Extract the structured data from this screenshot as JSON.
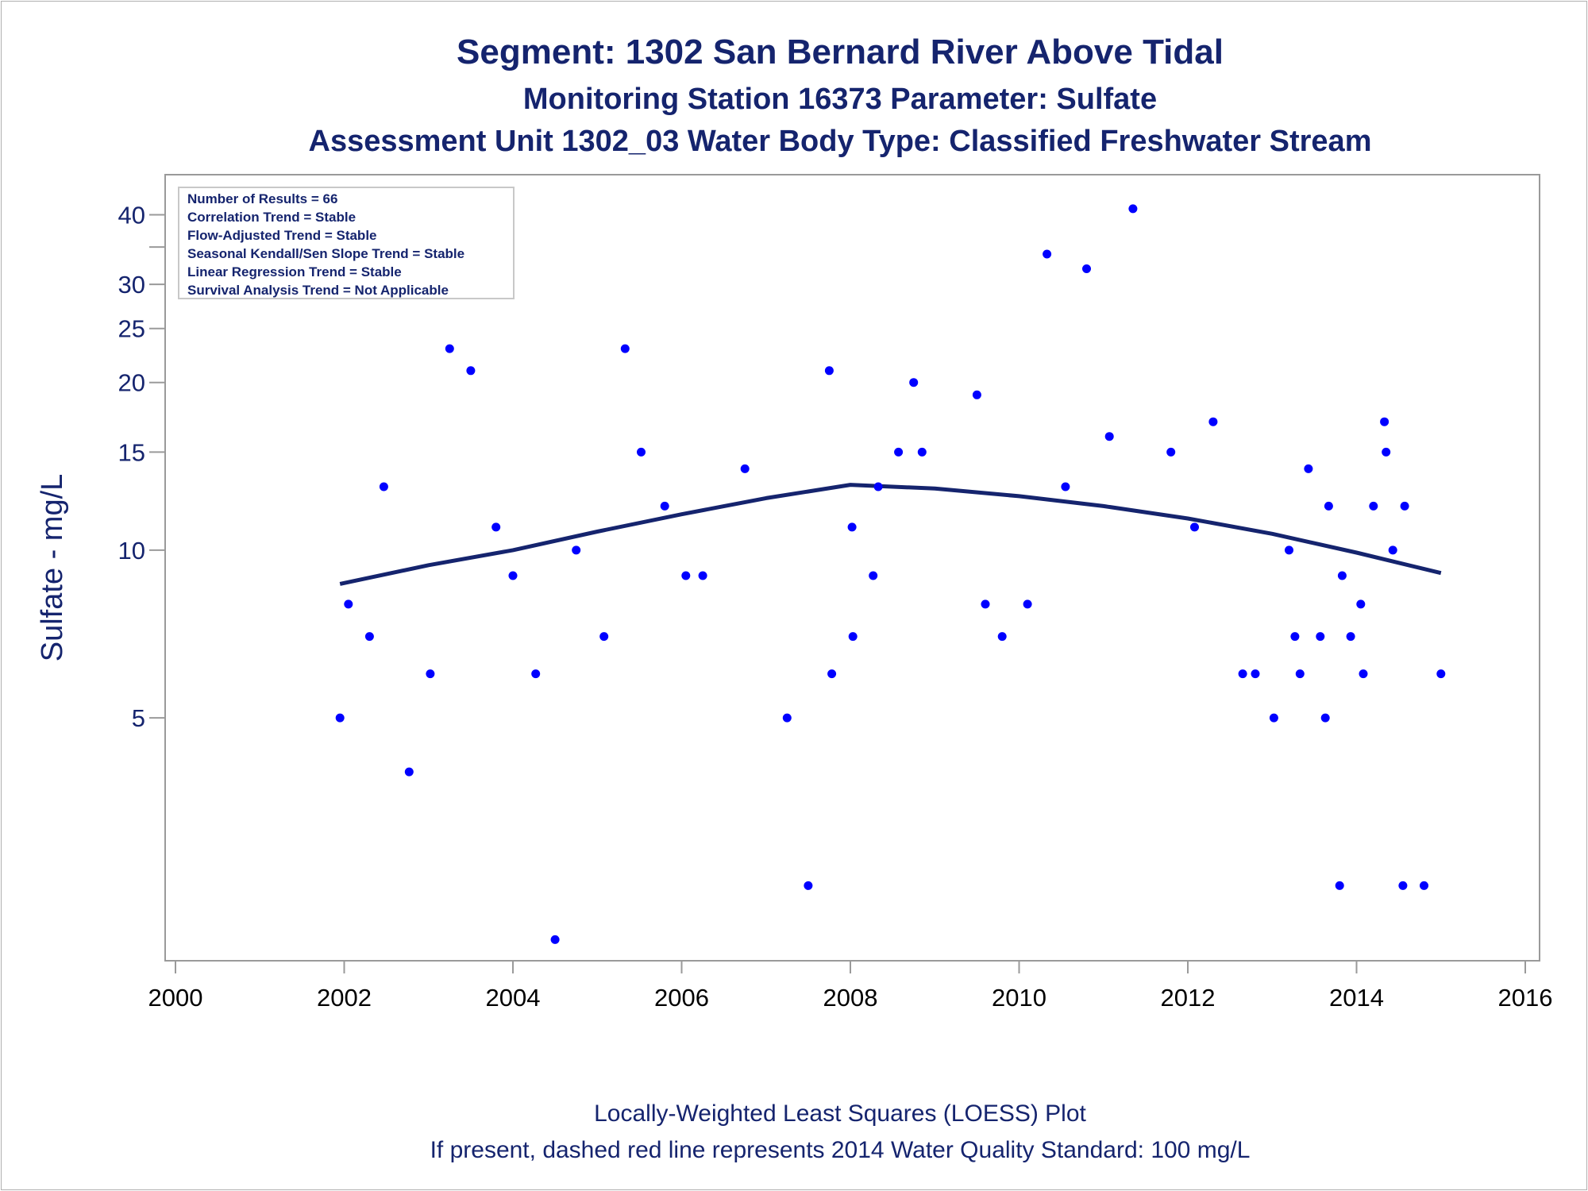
{
  "titles": {
    "line1": "Segment: 1302  San Bernard River Above Tidal",
    "line2": "Monitoring Station 16373 Parameter: Sulfate",
    "line3": "Assessment Unit 1302_03   Water Body Type: Classified Freshwater Stream"
  },
  "legend": {
    "lines": [
      "Number of Results = 66",
      "Correlation Trend = Stable",
      "Flow-Adjusted Trend = Stable",
      "Seasonal Kendall/Sen Slope Trend = Stable",
      "Linear Regression Trend = Stable",
      "Survival Analysis Trend = Not Applicable"
    ]
  },
  "footnotes": {
    "line1": "Locally-Weighted Least Squares (LOESS) Plot",
    "line2": "If present, dashed red line represents 2014 Water Quality Standard: 100   mg/L"
  },
  "colors": {
    "text": "#15246e",
    "points": "#0000ff",
    "loess": "#15246e",
    "axis": "#9a9a9a"
  },
  "chart_data": {
    "type": "scatter",
    "title": "Segment: 1302  San Bernard River Above Tidal",
    "ylabel": "Sulfate - mg/L",
    "xlabel": "",
    "y_scale": "log",
    "xlim": [
      2000,
      2016
    ],
    "ylim": [
      1.9,
      42.5
    ],
    "x_ticks": [
      "2000",
      "2002",
      "2004",
      "2006",
      "2008",
      "2010",
      "2012",
      "2014",
      "2016"
    ],
    "y_ticks": [
      {
        "value": 5,
        "label": "5"
      },
      {
        "value": 10,
        "label": "10"
      },
      {
        "value": 15,
        "label": "15"
      },
      {
        "value": 20,
        "label": "20"
      },
      {
        "value": 25,
        "label": "25"
      },
      {
        "value": 30,
        "label": "30"
      },
      {
        "value": 35,
        "label": ""
      },
      {
        "value": 40,
        "label": "40"
      }
    ],
    "points": [
      {
        "x": 2001.95,
        "y": 5
      },
      {
        "x": 2002.05,
        "y": 8
      },
      {
        "x": 2002.3,
        "y": 7
      },
      {
        "x": 2002.47,
        "y": 13
      },
      {
        "x": 2002.77,
        "y": 4
      },
      {
        "x": 2003.02,
        "y": 6
      },
      {
        "x": 2003.25,
        "y": 23
      },
      {
        "x": 2003.5,
        "y": 21
      },
      {
        "x": 2003.8,
        "y": 11
      },
      {
        "x": 2004.0,
        "y": 9
      },
      {
        "x": 2004.27,
        "y": 6
      },
      {
        "x": 2004.5,
        "y": 2
      },
      {
        "x": 2004.75,
        "y": 10
      },
      {
        "x": 2005.08,
        "y": 7
      },
      {
        "x": 2005.33,
        "y": 23
      },
      {
        "x": 2005.52,
        "y": 15
      },
      {
        "x": 2005.8,
        "y": 12
      },
      {
        "x": 2006.05,
        "y": 9
      },
      {
        "x": 2006.25,
        "y": 9
      },
      {
        "x": 2006.75,
        "y": 14
      },
      {
        "x": 2007.25,
        "y": 5
      },
      {
        "x": 2007.5,
        "y": 2.5
      },
      {
        "x": 2007.75,
        "y": 21
      },
      {
        "x": 2007.78,
        "y": 6
      },
      {
        "x": 2008.02,
        "y": 11
      },
      {
        "x": 2008.03,
        "y": 7
      },
      {
        "x": 2008.27,
        "y": 9
      },
      {
        "x": 2008.33,
        "y": 13
      },
      {
        "x": 2008.57,
        "y": 15
      },
      {
        "x": 2008.75,
        "y": 20
      },
      {
        "x": 2008.85,
        "y": 15
      },
      {
        "x": 2009.5,
        "y": 19
      },
      {
        "x": 2009.6,
        "y": 8
      },
      {
        "x": 2009.8,
        "y": 7
      },
      {
        "x": 2010.1,
        "y": 8
      },
      {
        "x": 2010.33,
        "y": 34
      },
      {
        "x": 2010.55,
        "y": 13
      },
      {
        "x": 2010.8,
        "y": 32
      },
      {
        "x": 2011.07,
        "y": 16
      },
      {
        "x": 2011.35,
        "y": 41
      },
      {
        "x": 2011.8,
        "y": 15
      },
      {
        "x": 2012.08,
        "y": 11
      },
      {
        "x": 2012.3,
        "y": 17
      },
      {
        "x": 2012.65,
        "y": 6
      },
      {
        "x": 2012.8,
        "y": 6
      },
      {
        "x": 2013.02,
        "y": 5
      },
      {
        "x": 2013.2,
        "y": 10
      },
      {
        "x": 2013.27,
        "y": 7
      },
      {
        "x": 2013.33,
        "y": 6
      },
      {
        "x": 2013.43,
        "y": 14
      },
      {
        "x": 2013.57,
        "y": 7
      },
      {
        "x": 2013.63,
        "y": 5
      },
      {
        "x": 2013.67,
        "y": 12
      },
      {
        "x": 2013.8,
        "y": 2.5
      },
      {
        "x": 2013.83,
        "y": 9
      },
      {
        "x": 2013.93,
        "y": 7
      },
      {
        "x": 2014.05,
        "y": 8
      },
      {
        "x": 2014.08,
        "y": 6
      },
      {
        "x": 2014.2,
        "y": 12
      },
      {
        "x": 2014.33,
        "y": 17
      },
      {
        "x": 2014.35,
        "y": 15
      },
      {
        "x": 2014.43,
        "y": 10
      },
      {
        "x": 2014.57,
        "y": 12
      },
      {
        "x": 2014.55,
        "y": 2.5
      },
      {
        "x": 2014.8,
        "y": 2.5
      },
      {
        "x": 2015.0,
        "y": 6
      }
    ],
    "loess": [
      {
        "x": 2001.95,
        "y": 8.7
      },
      {
        "x": 2003.0,
        "y": 9.4
      },
      {
        "x": 2004.0,
        "y": 10.0
      },
      {
        "x": 2005.0,
        "y": 10.8
      },
      {
        "x": 2006.0,
        "y": 11.6
      },
      {
        "x": 2007.0,
        "y": 12.4
      },
      {
        "x": 2008.0,
        "y": 13.1
      },
      {
        "x": 2009.0,
        "y": 12.9
      },
      {
        "x": 2010.0,
        "y": 12.5
      },
      {
        "x": 2011.0,
        "y": 12.0
      },
      {
        "x": 2012.0,
        "y": 11.4
      },
      {
        "x": 2013.0,
        "y": 10.7
      },
      {
        "x": 2014.0,
        "y": 9.9
      },
      {
        "x": 2015.0,
        "y": 9.1
      }
    ]
  }
}
